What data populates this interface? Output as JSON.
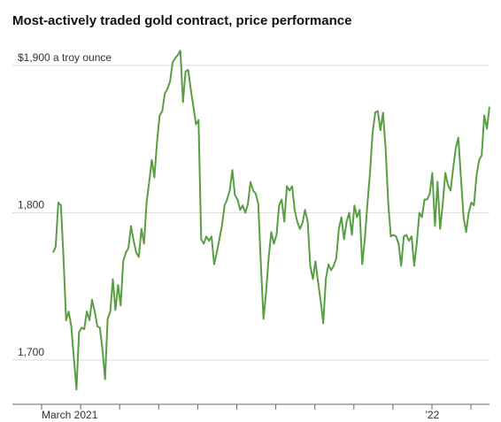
{
  "chart_data": {
    "type": "line",
    "title": "Most-actively traded gold contract, price performance",
    "categories": [
      "March 2021",
      null,
      null,
      null,
      null,
      null,
      null,
      null,
      null,
      null,
      null,
      null,
      null,
      null,
      null,
      null,
      null,
      null,
      null,
      null,
      null,
      null,
      null,
      null,
      null,
      null,
      null,
      null,
      null,
      null,
      null,
      null,
      null,
      null,
      null,
      null,
      null,
      null,
      null,
      null,
      null,
      null,
      null,
      null,
      null,
      null,
      null,
      null,
      null,
      null,
      null,
      null,
      null,
      null,
      null,
      null,
      null,
      null,
      null,
      null,
      null,
      null,
      null,
      null,
      null,
      null,
      null,
      null,
      null,
      null,
      null,
      null,
      null,
      null,
      null,
      null,
      null,
      null,
      null,
      null,
      null,
      null,
      null,
      null,
      null,
      null,
      null,
      null,
      null,
      null,
      null,
      null,
      null,
      null,
      null,
      null,
      null,
      null,
      null,
      null,
      null,
      null,
      null,
      null,
      null,
      null,
      null,
      null,
      null,
      null,
      null,
      null,
      null,
      null,
      null,
      null,
      null,
      null,
      null,
      null,
      null,
      null,
      null,
      null,
      null,
      null,
      null,
      null,
      null,
      null,
      null,
      null,
      null,
      null,
      null,
      null,
      null,
      null,
      null,
      null,
      null,
      null,
      null,
      null,
      null,
      null,
      "'22",
      null,
      null,
      null,
      null,
      null,
      null,
      null,
      null,
      null,
      null,
      null,
      null,
      null,
      null,
      null,
      null,
      null,
      null,
      null,
      null,
      null,
      null
    ],
    "series": [
      {
        "color": "#5a9e44",
        "values": [
          1773,
          1777,
          1807,
          1805,
          1770,
          1727,
          1733,
          1723,
          1701,
          1680,
          1719,
          1722,
          1721,
          1733,
          1727,
          1741,
          1733,
          1723,
          1722,
          1707,
          1687,
          1728,
          1733,
          1755,
          1734,
          1751,
          1737,
          1767,
          1773,
          1776,
          1791,
          1781,
          1773,
          1770,
          1789,
          1779,
          1807,
          1821,
          1836,
          1824,
          1848,
          1866,
          1869,
          1881,
          1884,
          1889,
          1902,
          1905,
          1907,
          1910,
          1875,
          1896,
          1897,
          1884,
          1872,
          1860,
          1863,
          1782,
          1779,
          1784,
          1781,
          1784,
          1765,
          1773,
          1782,
          1791,
          1805,
          1809,
          1815,
          1829,
          1812,
          1809,
          1802,
          1805,
          1800,
          1806,
          1821,
          1815,
          1813,
          1806,
          1764,
          1728,
          1746,
          1770,
          1787,
          1779,
          1785,
          1805,
          1809,
          1794,
          1818,
          1815,
          1818,
          1802,
          1794,
          1789,
          1793,
          1802,
          1794,
          1764,
          1755,
          1767,
          1753,
          1740,
          1725,
          1755,
          1765,
          1761,
          1764,
          1769,
          1789,
          1797,
          1782,
          1794,
          1800,
          1785,
          1805,
          1797,
          1802,
          1765,
          1782,
          1806,
          1827,
          1854,
          1868,
          1869,
          1856,
          1868,
          1844,
          1807,
          1784,
          1785,
          1784,
          1779,
          1764,
          1784,
          1785,
          1781,
          1784,
          1764,
          1779,
          1800,
          1797,
          1809,
          1809,
          1813,
          1827,
          1791,
          1821,
          1789,
          1806,
          1827,
          1819,
          1815,
          1830,
          1844,
          1851,
          1824,
          1797,
          1787,
          1800,
          1807,
          1805,
          1825,
          1836,
          1839,
          1866,
          1857,
          1872
        ]
      }
    ],
    "ylim": [
      1670,
      1912
    ],
    "yticks": [
      {
        "value": 1700,
        "label": "1,700"
      },
      {
        "value": 1800,
        "label": "1,800"
      },
      {
        "value": 1900,
        "label": "$1,900 a troy ounce"
      }
    ],
    "grid": true
  }
}
